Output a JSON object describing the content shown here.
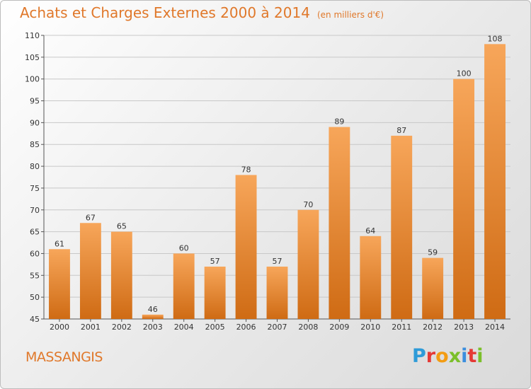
{
  "chart_data": {
    "type": "bar",
    "title": "Achats et Charges Externes 2000 à 2014",
    "subtitle": "(en milliers d'€)",
    "categories": [
      "2000",
      "2001",
      "2002",
      "2003",
      "2004",
      "2005",
      "2006",
      "2007",
      "2008",
      "2009",
      "2010",
      "2011",
      "2012",
      "2013",
      "2014"
    ],
    "values": [
      61,
      67,
      65,
      46,
      60,
      57,
      78,
      57,
      70,
      89,
      64,
      87,
      59,
      100,
      108
    ],
    "ylim": [
      45,
      110
    ],
    "yticks": [
      45,
      50,
      55,
      60,
      65,
      70,
      75,
      80,
      85,
      90,
      95,
      100,
      105,
      110
    ],
    "grid": true,
    "bar_color_top": "#f7a65a",
    "bar_color_bottom": "#cf6b14"
  },
  "location": "MASSANGIS",
  "logo": {
    "letters": [
      "P",
      "r",
      "o",
      "x",
      "i",
      "t",
      "i"
    ]
  }
}
